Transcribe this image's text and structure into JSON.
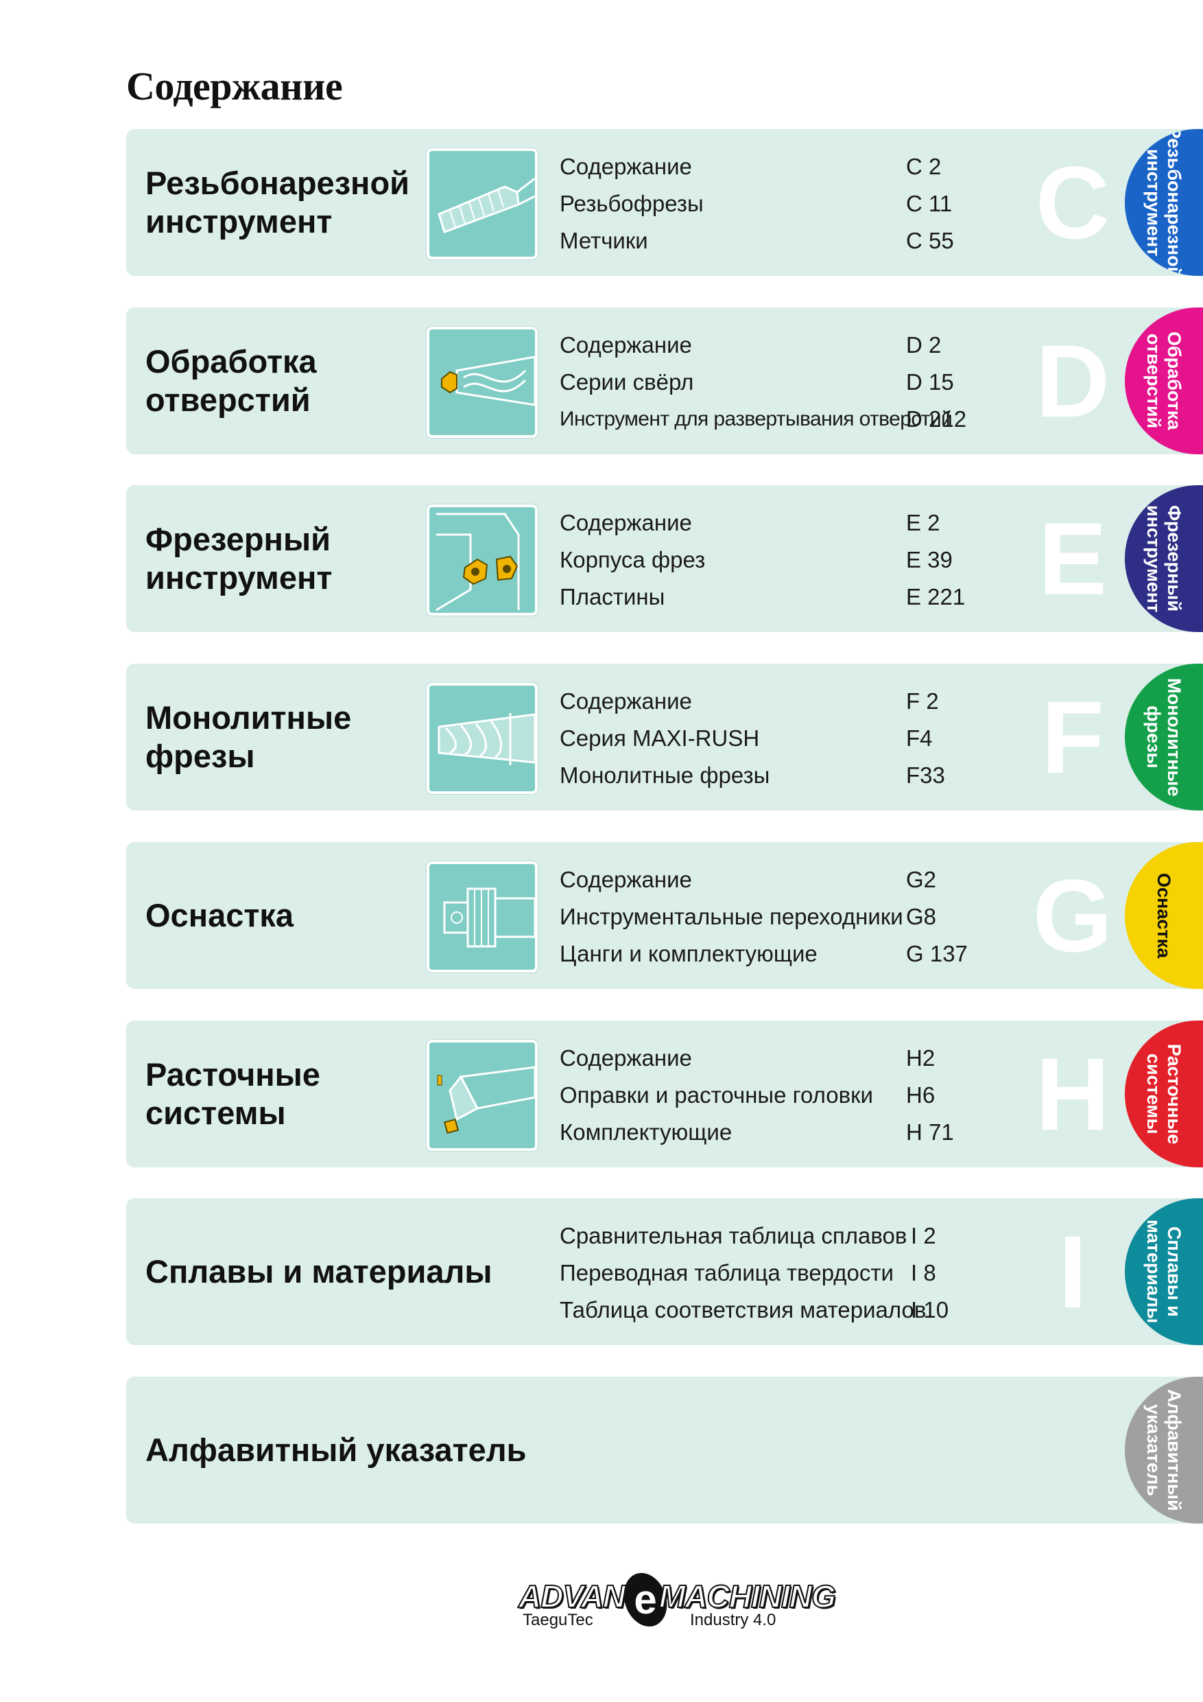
{
  "page_title": "Содержание",
  "sections": [
    {
      "title": "Резьбонарезной\nинструмент",
      "letter": "C",
      "tab": {
        "label": "Резьбонарезной\nинструмент",
        "color": "#1a64c8",
        "text_color": "#ffffff"
      },
      "entries": [
        {
          "label": "Содержание",
          "page": "C 2"
        },
        {
          "label": "Резьбофрезы",
          "page": "C 11"
        },
        {
          "label": "Метчики",
          "page": "C 55"
        }
      ],
      "icon": "threading-tool-icon"
    },
    {
      "title": "Обработка\nотверстий",
      "letter": "D",
      "tab": {
        "label": "Обработка\nотверстий",
        "color": "#e6148c",
        "text_color": "#ffffff"
      },
      "entries": [
        {
          "label": "Содержание",
          "page": "D 2"
        },
        {
          "label": "Серии свёрл",
          "page": "D 15"
        },
        {
          "label": "Инструмент для развертывания отверстий",
          "page": "D 212"
        }
      ],
      "icon": "drill-icon"
    },
    {
      "title": "Фрезерный\nинструмент",
      "letter": "E",
      "tab": {
        "label": "Фрезерный\nинструмент",
        "color": "#2e2e87",
        "text_color": "#ffffff"
      },
      "entries": [
        {
          "label": "Содержание",
          "page": "E 2"
        },
        {
          "label": "Корпуса фрез",
          "page": "E 39"
        },
        {
          "label": "Пластины",
          "page": "E 221"
        }
      ],
      "icon": "milling-cutter-icon"
    },
    {
      "title": "Монолитные\nфрезы",
      "letter": "F",
      "tab": {
        "label": "Монолитные\nфрезы",
        "color": "#14a04b",
        "text_color": "#ffffff"
      },
      "entries": [
        {
          "label": "Содержание",
          "page": "F 2"
        },
        {
          "label": "Серия MAXI-RUSH",
          "page": "F4"
        },
        {
          "label": "Монолитные фрезы",
          "page": "F33"
        }
      ],
      "icon": "endmill-icon"
    },
    {
      "title": "Оснастка",
      "letter": "G",
      "tab": {
        "label": "Оснастка",
        "color": "#f5d200",
        "text_color": "#111111"
      },
      "entries": [
        {
          "label": "Содержание",
          "page": "G2"
        },
        {
          "label": "Инструментальные переходники",
          "page": "G8"
        },
        {
          "label": "Цанги и комплектующие",
          "page": "G 137"
        }
      ],
      "icon": "tool-holder-icon"
    },
    {
      "title": "Расточные\nсистемы",
      "letter": "H",
      "tab": {
        "label": "Расточные\nсистемы",
        "color": "#e3212b",
        "text_color": "#ffffff"
      },
      "entries": [
        {
          "label": "Содержание",
          "page": "H2"
        },
        {
          "label": "Оправки и расточные головки",
          "page": "H6"
        },
        {
          "label": "Комплектующие",
          "page": "H 71"
        }
      ],
      "icon": "boring-head-icon"
    },
    {
      "title": "Сплавы и материалы",
      "letter": "I",
      "tab": {
        "label": "Сплавы и\nматериалы",
        "color": "#0f8c9b",
        "text_color": "#ffffff"
      },
      "entries": [
        {
          "label": "Сравнительная таблица сплавов",
          "page": "I 2"
        },
        {
          "label": "Переводная таблица твердости",
          "page": "I 8"
        },
        {
          "label": "Таблица соответствия материалов",
          "page": "I 10"
        }
      ]
    },
    {
      "title": "Алфавитный указатель",
      "letter": "",
      "tab": {
        "label": "Алфавитный\nуказатель",
        "color": "#a0a0a0",
        "text_color": "#ffffff"
      },
      "entries": []
    }
  ],
  "footer": {
    "logo_left": "ADVANC",
    "logo_mid": "e",
    "logo_right": "MACHINING",
    "sub_left": "TaeguTec",
    "sub_right": "Industry 4.0"
  }
}
